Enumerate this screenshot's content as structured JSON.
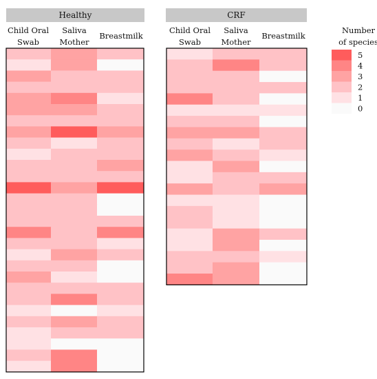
{
  "chart_data": [
    {
      "type": "heatmap",
      "title": "Healthy",
      "columns": [
        "Child Oral Swab",
        "Saliva Mother",
        "Breastmilk"
      ],
      "column_labels": [
        [
          "Child Oral",
          "Swab"
        ],
        [
          "Saliva",
          "Mother"
        ],
        [
          "Breastmilk"
        ]
      ],
      "rows": [
        [
          2,
          3,
          2
        ],
        [
          1,
          3,
          0
        ],
        [
          3,
          2,
          2
        ],
        [
          2,
          2,
          2
        ],
        [
          3,
          4,
          1
        ],
        [
          3,
          3,
          2
        ],
        [
          2,
          2,
          2
        ],
        [
          3,
          5,
          3
        ],
        [
          2,
          1,
          2
        ],
        [
          1,
          2,
          2
        ],
        [
          2,
          2,
          3
        ],
        [
          2,
          2,
          2
        ],
        [
          5,
          3,
          5
        ],
        [
          2,
          2,
          0
        ],
        [
          2,
          2,
          0
        ],
        [
          2,
          2,
          2
        ],
        [
          4,
          2,
          4
        ],
        [
          2,
          2,
          1
        ],
        [
          1,
          3,
          2
        ],
        [
          2,
          2,
          0
        ],
        [
          3,
          1,
          0
        ],
        [
          2,
          2,
          2
        ],
        [
          2,
          4,
          2
        ],
        [
          1,
          0,
          1
        ],
        [
          2,
          3,
          2
        ],
        [
          1,
          2,
          2
        ],
        [
          1,
          0,
          0
        ],
        [
          2,
          4,
          0
        ],
        [
          1,
          4,
          0
        ]
      ]
    },
    {
      "type": "heatmap",
      "title": "CRF",
      "columns": [
        "Child Oral Swab",
        "Saliva Mother",
        "Breastmilk"
      ],
      "column_labels": [
        [
          "Child Oral",
          "Swab"
        ],
        [
          "Saliva",
          "Mother"
        ],
        [
          "Breastmilk"
        ]
      ],
      "rows": [
        [
          1,
          2,
          2
        ],
        [
          2,
          4,
          2
        ],
        [
          2,
          2,
          0
        ],
        [
          2,
          2,
          2
        ],
        [
          4,
          2,
          0
        ],
        [
          1,
          1,
          1
        ],
        [
          2,
          2,
          0
        ],
        [
          3,
          3,
          2
        ],
        [
          2,
          1,
          2
        ],
        [
          3,
          2,
          1
        ],
        [
          1,
          3,
          0
        ],
        [
          1,
          2,
          2
        ],
        [
          3,
          2,
          3
        ],
        [
          1,
          1,
          0
        ],
        [
          2,
          1,
          0
        ],
        [
          2,
          1,
          0
        ],
        [
          1,
          3,
          2
        ],
        [
          1,
          3,
          0
        ],
        [
          2,
          2,
          1
        ],
        [
          2,
          3,
          0
        ],
        [
          4,
          3,
          0
        ]
      ]
    }
  ],
  "legend": {
    "title_lines": [
      "Number",
      "of species"
    ],
    "levels": [
      5,
      4,
      3,
      2,
      1,
      0
    ],
    "colors": [
      "#ff5c5c",
      "#ff8585",
      "#ffa3a3",
      "#ffc2c6",
      "#ffe1e4",
      "#fafafa"
    ]
  }
}
